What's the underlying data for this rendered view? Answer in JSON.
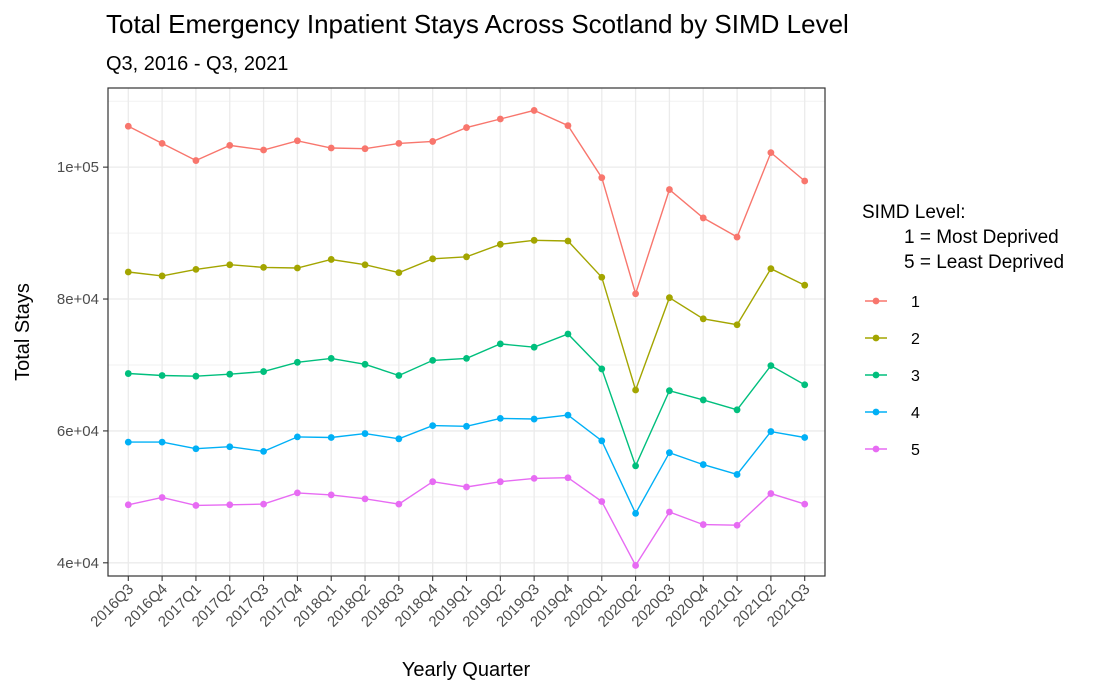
{
  "chart_data": {
    "type": "line",
    "title": "Total Emergency Inpatient Stays Across Scotland by SIMD Level",
    "subtitle": "Q3, 2016 - Q3, 2021",
    "xlabel": "Yearly Quarter",
    "ylabel": "Total Stays",
    "ylim": [
      38000,
      112000
    ],
    "y_ticks": [
      40000,
      60000,
      80000,
      100000
    ],
    "y_tick_labels": [
      "4e+04",
      "6e+04",
      "8e+04",
      "1e+05"
    ],
    "grid": true,
    "legend_position": "right",
    "legend_title": [
      "SIMD Level:",
      "1 = Most Deprived",
      "5 = Least Deprived"
    ],
    "categories": [
      "2016Q3",
      "2016Q4",
      "2017Q1",
      "2017Q2",
      "2017Q3",
      "2017Q4",
      "2018Q1",
      "2018Q2",
      "2018Q3",
      "2018Q4",
      "2019Q1",
      "2019Q2",
      "2019Q3",
      "2019Q4",
      "2020Q1",
      "2020Q2",
      "2020Q3",
      "2020Q4",
      "2021Q1",
      "2021Q2",
      "2021Q3"
    ],
    "series": [
      {
        "name": "1",
        "color": "#F8766D",
        "values": [
          106200,
          103600,
          101000,
          103300,
          102600,
          104000,
          102900,
          102800,
          103600,
          103900,
          106000,
          107300,
          108600,
          106300,
          98400,
          80800,
          96600,
          92300,
          89400,
          102200,
          97900
        ]
      },
      {
        "name": "2",
        "color": "#A3A500",
        "values": [
          84100,
          83500,
          84500,
          85200,
          84800,
          84700,
          86000,
          85200,
          84000,
          86100,
          86400,
          88300,
          88900,
          88800,
          83300,
          66200,
          80200,
          77000,
          76100,
          84600,
          82100
        ]
      },
      {
        "name": "3",
        "color": "#00BF7D",
        "values": [
          68700,
          68400,
          68300,
          68600,
          69000,
          70400,
          71000,
          70100,
          68400,
          70700,
          71000,
          73200,
          72700,
          74700,
          69400,
          54700,
          66100,
          64700,
          63200,
          69900,
          67000
        ]
      },
      {
        "name": "4",
        "color": "#00B0F6",
        "values": [
          58300,
          58300,
          57300,
          57600,
          56900,
          59100,
          59000,
          59600,
          58800,
          60800,
          60700,
          61900,
          61800,
          62400,
          58500,
          47500,
          56700,
          54900,
          53400,
          59900,
          59000
        ]
      },
      {
        "name": "5",
        "color": "#E76BF3",
        "values": [
          48800,
          49900,
          48700,
          48800,
          48900,
          50600,
          50300,
          49700,
          48900,
          52300,
          51500,
          52300,
          52800,
          52900,
          49300,
          39600,
          47700,
          45800,
          45700,
          50500,
          48900
        ]
      }
    ]
  }
}
